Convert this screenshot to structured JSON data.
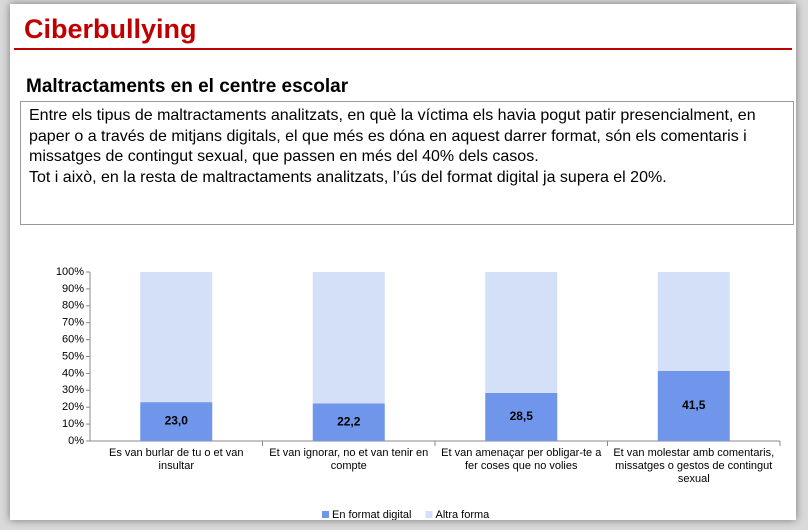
{
  "header": {
    "title": "Ciberbullying",
    "subtitle": "Maltractaments en el centre escolar"
  },
  "text": {
    "paragraphs": [
      "Entre els tipus de maltractaments analitzats, en què la víctima els havia pogut patir presencialment, en paper o a través de mitjans digitals, el que més es dóna en aquest darrer format, són els comentaris i missatges de contingut sexual, que passen en més del 40% dels casos.",
      "Tot i això, en la resta de maltractaments analitzats, l’ús del format digital ja supera el 20%."
    ]
  },
  "chart_data": {
    "type": "stacked_bar",
    "categories": [
      "Es van burlar de tu o et van insultar",
      "Et van ignorar, no et van tenir en compte",
      "Et van amenaçar per obligar-te a fer coses que no volies",
      "Et van molestar amb comentaris, missatges o gestos de contingut sexual"
    ],
    "series": [
      {
        "name": "En format digital",
        "color": "#6f96ea",
        "values": [
          23.0,
          22.2,
          28.5,
          41.5
        ],
        "value_labels": [
          "23,0",
          "22,2",
          "28,5",
          "41,5"
        ]
      },
      {
        "name": "Altra forma",
        "color": "#d4e0f8",
        "values": [
          77.0,
          77.8,
          71.5,
          58.5
        ]
      }
    ],
    "ylim": [
      0,
      100
    ],
    "yticks": [
      {
        "value": 0,
        "label": "0%"
      },
      {
        "value": 10,
        "label": "10%"
      },
      {
        "value": 20,
        "label": "20%"
      },
      {
        "value": 30,
        "label": "30%"
      },
      {
        "value": 40,
        "label": "40%"
      },
      {
        "value": 50,
        "label": "50%"
      },
      {
        "value": 60,
        "label": "60%"
      },
      {
        "value": 70,
        "label": "70%"
      },
      {
        "value": 80,
        "label": "80%"
      },
      {
        "value": 90,
        "label": "90%"
      },
      {
        "value": 100,
        "label": "100%"
      }
    ],
    "legend": "bottom"
  }
}
